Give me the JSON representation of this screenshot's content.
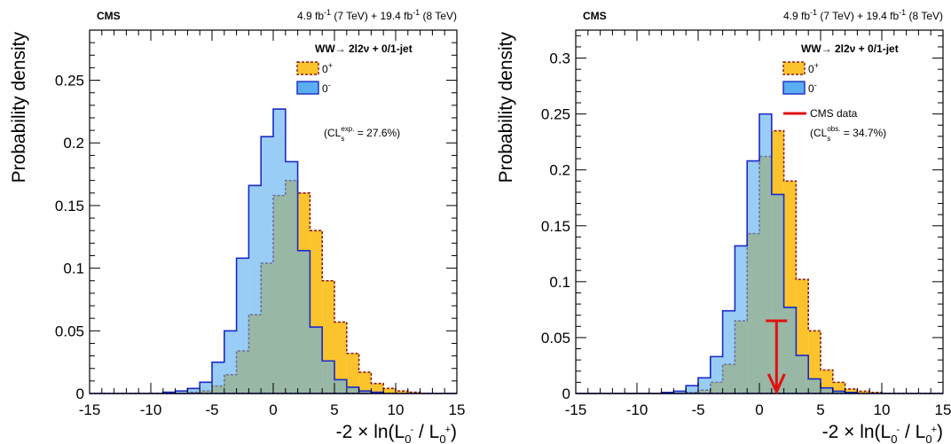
{
  "chart_data": [
    {
      "type": "histogram",
      "experiment": "CMS",
      "lumi": {
        "l7": "4.9 fb",
        "sup": "-1",
        "m7": " (7 TeV) + 19.4 fb",
        "m8": " (8 TeV)"
      },
      "channel": {
        "pre": "WW",
        "arrow": "→",
        "post": " 2l2ν + 0/1-jet"
      },
      "xlabel": {
        "pre": "-2 × ln(L",
        "sub1": "0",
        "sup1": "-",
        "mid": " / L",
        "sub2": "0",
        "sup2": "+",
        "post": ")"
      },
      "ylabel": "Probability density",
      "xlim": [
        -15,
        15
      ],
      "ylim": [
        0,
        0.29
      ],
      "xticks": [
        -15,
        -10,
        -5,
        0,
        5,
        10,
        15
      ],
      "xtick_labels": [
        "-15",
        "-10",
        "-5",
        "0",
        "5",
        "10",
        "15"
      ],
      "yticks": [
        0,
        0.05,
        0.1,
        0.15,
        0.2,
        0.25
      ],
      "ytick_labels": [
        "0",
        "0.05",
        "0.1",
        "0.15",
        "0.2",
        "0.25"
      ],
      "legend": {
        "entries": [
          {
            "base": "0",
            "sup": "+"
          },
          {
            "base": "0",
            "sup": "-"
          }
        ]
      },
      "cls": {
        "pre": "(CL",
        "sub": "s",
        "sup": "exp.",
        "post": " = 27.6%)"
      },
      "bin_edges": [
        -15,
        -14,
        -13,
        -12,
        -11,
        -10,
        -9,
        -8,
        -7,
        -6,
        -5,
        -4,
        -3,
        -2,
        -1,
        0,
        1,
        2,
        3,
        4,
        5,
        6,
        7,
        8,
        9,
        10,
        11,
        12,
        13,
        14,
        15
      ],
      "series": [
        {
          "name": "0⁺",
          "color": "#fcc42c",
          "edge": "#8b1a1a",
          "values": [
            0,
            0,
            0,
            0,
            0,
            0,
            0,
            0,
            0.001,
            0.002,
            0.006,
            0.015,
            0.034,
            0.063,
            0.104,
            0.158,
            0.17,
            0.16,
            0.13,
            0.09,
            0.057,
            0.032,
            0.017,
            0.008,
            0.004,
            0.002,
            0.001,
            0,
            0,
            0
          ]
        },
        {
          "name": "0⁻",
          "color": "#5aaff0",
          "edge": "#1a2ac8",
          "values": [
            0,
            0,
            0,
            0,
            0,
            0,
            0.001,
            0.002,
            0.004,
            0.009,
            0.025,
            0.05,
            0.108,
            0.166,
            0.205,
            0.227,
            0.185,
            0.114,
            0.053,
            0.026,
            0.011,
            0.005,
            0.002,
            0.001,
            0,
            0,
            0,
            0,
            0,
            0
          ]
        }
      ]
    },
    {
      "type": "histogram",
      "experiment": "CMS",
      "lumi": {
        "l7": "4.9 fb",
        "sup": "-1",
        "m7": " (7 TeV) + 19.4 fb",
        "m8": " (8 TeV)"
      },
      "channel": {
        "pre": "WW",
        "arrow": "→",
        "post": " 2l2ν + 0/1-jet"
      },
      "xlabel": {
        "pre": "-2 × ln(L",
        "sub1": "0",
        "sup1": "-",
        "mid": " / L",
        "sub2": "0",
        "sup2": "+",
        "post": ")"
      },
      "ylabel": "Probability density",
      "xlim": [
        -15,
        15
      ],
      "ylim": [
        0,
        0.325
      ],
      "xticks": [
        -15,
        -10,
        -5,
        0,
        5,
        10,
        15
      ],
      "xtick_labels": [
        "-15",
        "-10",
        "-5",
        "0",
        "5",
        "10",
        "15"
      ],
      "yticks": [
        0,
        0.05,
        0.1,
        0.15,
        0.2,
        0.25,
        0.3
      ],
      "ytick_labels": [
        "0",
        "0.05",
        "0.1",
        "0.15",
        "0.2",
        "0.25",
        "0.3"
      ],
      "legend": {
        "entries": [
          {
            "base": "0",
            "sup": "+"
          },
          {
            "base": "0",
            "sup": "-"
          }
        ],
        "data_label": "CMS data"
      },
      "cls": {
        "pre": "(CL",
        "sub": "s",
        "sup": "obs.",
        "post": " = 34.7%)"
      },
      "observed": {
        "x": 1.4,
        "y_top": 0.065,
        "color": "#e01010"
      },
      "bin_edges": [
        -15,
        -14,
        -13,
        -12,
        -11,
        -10,
        -9,
        -8,
        -7,
        -6,
        -5,
        -4,
        -3,
        -2,
        -1,
        0,
        1,
        2,
        3,
        4,
        5,
        6,
        7,
        8,
        9,
        10,
        11,
        12,
        13,
        14,
        15
      ],
      "series": [
        {
          "name": "0⁺",
          "color": "#fcc42c",
          "edge": "#8b1a1a",
          "values": [
            0,
            0,
            0,
            0,
            0,
            0,
            0,
            0,
            0,
            0.001,
            0.003,
            0.01,
            0.026,
            0.065,
            0.143,
            0.212,
            0.235,
            0.19,
            0.102,
            0.056,
            0.021,
            0.01,
            0.004,
            0.002,
            0.001,
            0,
            0,
            0,
            0,
            0
          ]
        },
        {
          "name": "0⁻",
          "color": "#5aaff0",
          "edge": "#1a2ac8",
          "values": [
            0,
            0,
            0,
            0,
            0,
            0,
            0,
            0.001,
            0.002,
            0.007,
            0.014,
            0.033,
            0.074,
            0.132,
            0.208,
            0.25,
            0.178,
            0.077,
            0.034,
            0.013,
            0.005,
            0.002,
            0.001,
            0,
            0,
            0,
            0,
            0,
            0,
            0
          ]
        }
      ]
    }
  ]
}
